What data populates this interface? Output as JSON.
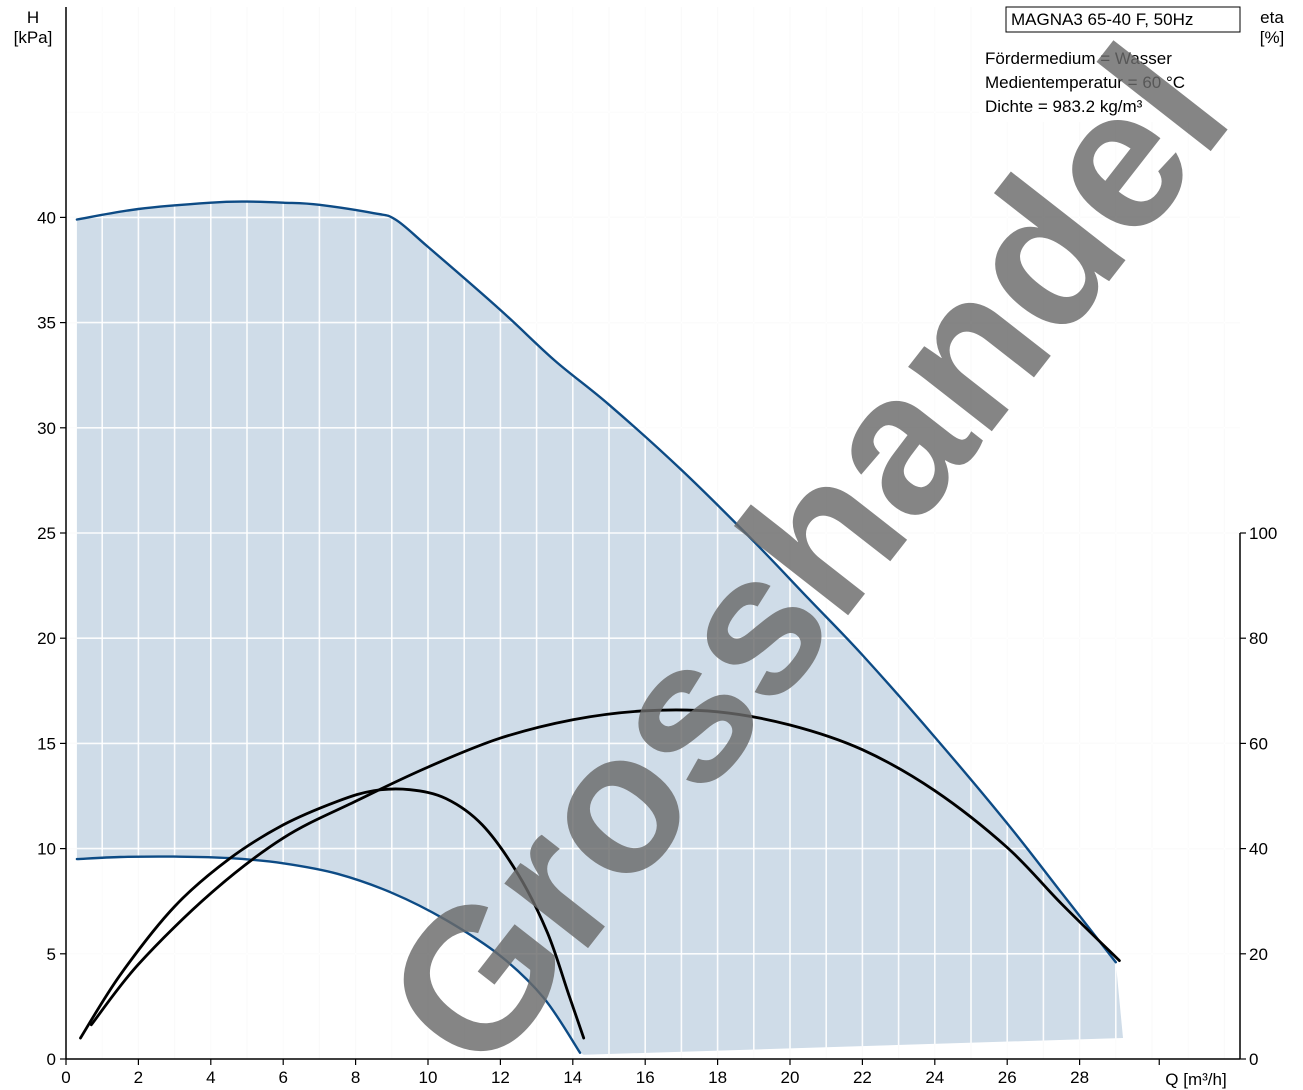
{
  "info_box": {
    "title": "MAGNA3 65-40 F, 50Hz",
    "lines": [
      "Fördermedium = Wasser",
      "Medientemperatur = 60 °C",
      "Dichte = 983.2 kg/m³"
    ]
  },
  "watermark": {
    "text": "Grosshandel"
  },
  "colors": {
    "range_fill": "#cfdce8",
    "pump_curve": "#0d4b85",
    "efficiency_curve": "#000000",
    "grid": "#ffffff",
    "watermark": "#6b6b6b"
  },
  "chart_data": {
    "type": "area",
    "xlabel": "Q [m³/h]",
    "ylabel_left": [
      "H",
      "[kPa]"
    ],
    "ylabel_right": [
      "eta",
      "[%]"
    ],
    "xlim": [
      0,
      29.5
    ],
    "ylim_left": [
      0,
      50
    ],
    "ylim_right": [
      0,
      200
    ],
    "x_ticks": [
      0,
      2,
      4,
      6,
      8,
      10,
      12,
      14,
      16,
      18,
      20,
      22,
      24,
      26,
      28
    ],
    "y_ticks_left": [
      0,
      5,
      10,
      15,
      20,
      25,
      30,
      35,
      40
    ],
    "y_ticks_right": [
      0,
      20,
      40,
      60,
      80,
      100
    ],
    "grid": true,
    "series": [
      {
        "kind": "pump-curve-max",
        "axis": "left",
        "points": [
          [
            0.3,
            39.9
          ],
          [
            2,
            40.4
          ],
          [
            4,
            40.7
          ],
          [
            5,
            40.75
          ],
          [
            6,
            40.7
          ],
          [
            7,
            40.6
          ],
          [
            8.5,
            40.2
          ],
          [
            9.1,
            39.9
          ],
          [
            10,
            38.6
          ],
          [
            12,
            35.6
          ],
          [
            13.5,
            33.2
          ],
          [
            15,
            31.1
          ],
          [
            17,
            28.0
          ],
          [
            19,
            24.6
          ],
          [
            20.5,
            21.9
          ],
          [
            22,
            19.2
          ],
          [
            24,
            15.3
          ],
          [
            26,
            11.2
          ],
          [
            27.5,
            7.9
          ],
          [
            29,
            4.6
          ]
        ]
      },
      {
        "kind": "pump-curve-min",
        "axis": "left",
        "points": [
          [
            0.3,
            9.5
          ],
          [
            1.5,
            9.6
          ],
          [
            3,
            9.62
          ],
          [
            4.5,
            9.55
          ],
          [
            6,
            9.3
          ],
          [
            7.5,
            8.8
          ],
          [
            9,
            7.9
          ],
          [
            10.5,
            6.6
          ],
          [
            12,
            4.9
          ],
          [
            13.2,
            2.9
          ],
          [
            14.2,
            0.3
          ]
        ]
      },
      {
        "kind": "operating-range-bottom",
        "axis": "left",
        "points": [
          [
            14.3,
            0.2
          ],
          [
            29.2,
            1.0
          ]
        ]
      },
      {
        "kind": "efficiency-min-speed",
        "axis": "right",
        "points": [
          [
            0.4,
            4
          ],
          [
            1.5,
            16
          ],
          [
            3,
            29
          ],
          [
            4.5,
            38
          ],
          [
            6,
            44.5
          ],
          [
            7.5,
            49
          ],
          [
            8.5,
            51
          ],
          [
            9.5,
            51.2
          ],
          [
            10.5,
            49.5
          ],
          [
            11.5,
            44.5
          ],
          [
            12.5,
            35
          ],
          [
            13.3,
            24
          ],
          [
            13.9,
            12
          ],
          [
            14.3,
            4
          ]
        ]
      },
      {
        "kind": "efficiency-max-speed",
        "axis": "right",
        "points": [
          [
            0.7,
            6.5
          ],
          [
            2,
            18
          ],
          [
            4,
            31.5
          ],
          [
            6,
            42
          ],
          [
            8,
            49
          ],
          [
            10,
            55.5
          ],
          [
            12,
            61
          ],
          [
            14,
            64.5
          ],
          [
            16,
            66.2
          ],
          [
            18,
            66
          ],
          [
            20,
            63.5
          ],
          [
            22,
            58.8
          ],
          [
            24,
            51
          ],
          [
            26,
            40.2
          ],
          [
            27.5,
            29.5
          ],
          [
            29.1,
            18.7
          ]
        ]
      }
    ]
  }
}
